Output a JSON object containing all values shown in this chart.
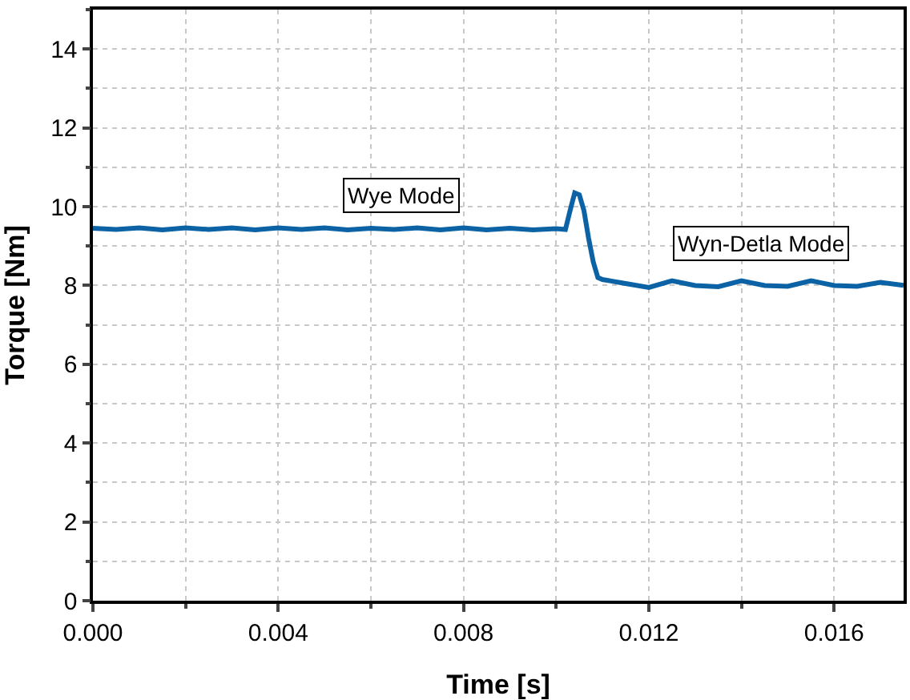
{
  "chart_data": {
    "type": "line",
    "xlabel": "Time [s]",
    "ylabel": "Torque [Nm]",
    "x": [
      0,
      0.0005,
      0.001,
      0.0015,
      0.002,
      0.0025,
      0.003,
      0.0035,
      0.004,
      0.0045,
      0.005,
      0.0055,
      0.006,
      0.0065,
      0.007,
      0.0075,
      0.008,
      0.0085,
      0.009,
      0.0095,
      0.01,
      0.0102,
      0.0103,
      0.0104,
      0.0105,
      0.0106,
      0.0107,
      0.0108,
      0.0109,
      0.011,
      0.0115,
      0.012,
      0.0125,
      0.013,
      0.0135,
      0.014,
      0.0145,
      0.015,
      0.0155,
      0.016,
      0.0165,
      0.017,
      0.0175
    ],
    "series": [
      {
        "color": "#0b62a4",
        "values": [
          9.45,
          9.42,
          9.46,
          9.41,
          9.46,
          9.42,
          9.46,
          9.41,
          9.46,
          9.42,
          9.46,
          9.41,
          9.45,
          9.42,
          9.46,
          9.41,
          9.46,
          9.41,
          9.45,
          9.41,
          9.44,
          9.42,
          9.9,
          10.35,
          10.3,
          9.9,
          9.2,
          8.6,
          8.2,
          8.15,
          8.05,
          7.95,
          8.12,
          8.0,
          7.97,
          8.12,
          8.0,
          7.98,
          8.12,
          8.0,
          7.98,
          8.08,
          8.0
        ]
      }
    ],
    "xlim": [
      0,
      0.0175
    ],
    "xticks": [
      {
        "value": 0,
        "label": "0.000"
      },
      {
        "value": 0.004,
        "label": "0.004"
      },
      {
        "value": 0.008,
        "label": "0.008"
      },
      {
        "value": 0.012,
        "label": "0.012"
      },
      {
        "value": 0.016,
        "label": "0.016"
      }
    ],
    "ylim": [
      0,
      15
    ],
    "yticks": [
      0,
      2,
      4,
      6,
      8,
      10,
      12,
      14
    ],
    "grid": true,
    "marker": "none",
    "line_style": "solid",
    "annotations": [
      "Wye Mode",
      "Wyn-Detla Mode"
    ]
  }
}
